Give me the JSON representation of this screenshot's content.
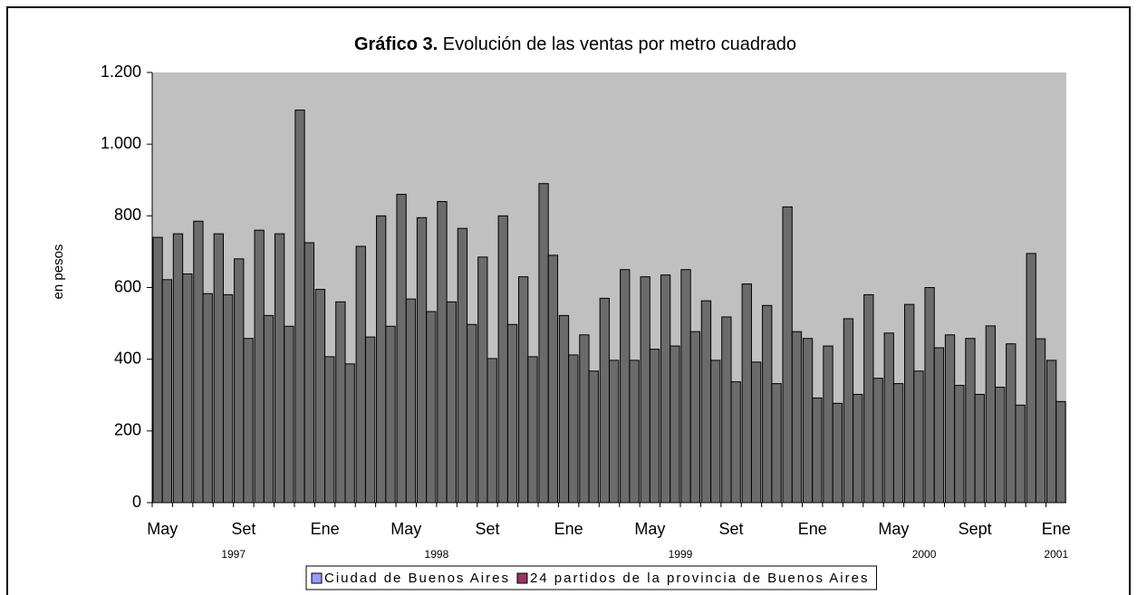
{
  "chart_data": {
    "type": "bar",
    "title_bold": "Gráfico 3.",
    "title": "Evolución de las ventas por metro cuadrado",
    "y_label": "en pesos",
    "categories": [
      "May",
      null,
      null,
      null,
      "Set",
      null,
      null,
      null,
      "Ene",
      null,
      null,
      null,
      "May",
      null,
      null,
      null,
      "Set",
      null,
      null,
      null,
      "Ene",
      null,
      null,
      null,
      "May",
      null,
      null,
      null,
      "Set",
      null,
      null,
      null,
      "Ene",
      null,
      null,
      null,
      "May",
      null,
      null,
      null,
      "Sept",
      null,
      null,
      null,
      "Ene"
    ],
    "groups": [
      {
        "label": "1997",
        "count": 8
      },
      {
        "label": "1998",
        "count": 12
      },
      {
        "label": "1999",
        "count": 12
      },
      {
        "label": "2000",
        "count": 12
      },
      {
        "label": "2001",
        "count": 1
      }
    ],
    "series": [
      {
        "name": "Ciudad de Buenos Aires",
        "color": "#6b6b6b",
        "legend_color": "#9999ff",
        "values": [
          740,
          750,
          785,
          750,
          680,
          760,
          750,
          1095,
          595,
          560,
          715,
          800,
          860,
          795,
          840,
          765,
          685,
          800,
          630,
          890,
          522,
          468,
          570,
          650,
          630,
          635,
          650,
          563,
          518,
          610,
          550,
          825,
          458,
          437,
          513,
          580,
          473,
          553,
          600,
          468,
          458,
          493,
          443,
          695,
          397
        ]
      },
      {
        "name": "24 partidos de la provincia de Buenos Aires",
        "color": "#6b6b6b",
        "legend_color": "#993366",
        "values": [
          622,
          638,
          583,
          580,
          458,
          522,
          492,
          725,
          407,
          387,
          462,
          492,
          568,
          533,
          560,
          497,
          402,
          497,
          407,
          690,
          412,
          367,
          397,
          397,
          428,
          437,
          477,
          397,
          337,
          392,
          332,
          477,
          292,
          277,
          302,
          347,
          332,
          367,
          432,
          327,
          302,
          322,
          272,
          457,
          282
        ]
      }
    ],
    "ylim": [
      0,
      1200
    ],
    "yticks": [
      0,
      200,
      400,
      600,
      800,
      {
        "value": 1000,
        "label": "1.000"
      },
      {
        "value": 1200,
        "label": "1.200"
      }
    ],
    "plot_background": "#c0c0c0"
  }
}
